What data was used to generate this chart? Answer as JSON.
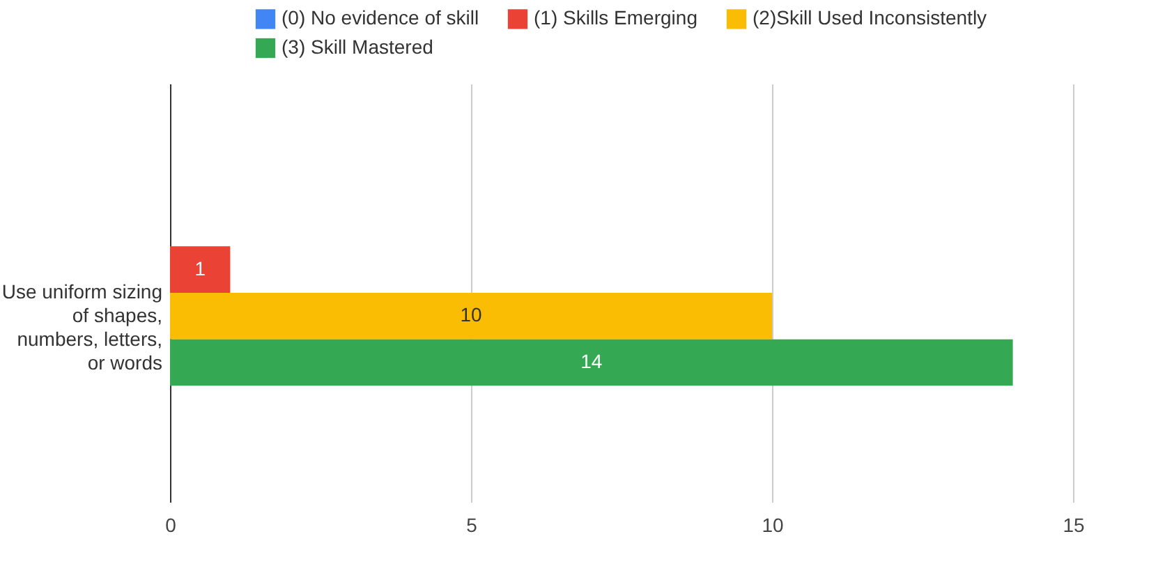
{
  "chart_data": {
    "type": "bar",
    "orientation": "horizontal",
    "categories": [
      "Use uniform sizing of shapes, numbers, letters, or words"
    ],
    "series": [
      {
        "name": "(0) No evidence of skill",
        "color": "#4285f4",
        "values": [
          null
        ]
      },
      {
        "name": "(1) Skills Emerging",
        "color": "#ea4335",
        "values": [
          1
        ]
      },
      {
        "name": "(2)Skill Used Inconsistently",
        "color": "#fbbc04",
        "values": [
          10
        ]
      },
      {
        "name": "(3) Skill Mastered",
        "color": "#34a853",
        "values": [
          14
        ]
      }
    ],
    "xlim": [
      0,
      15
    ],
    "xticks": [
      0,
      5,
      10,
      15
    ],
    "grid": "x",
    "legend": "top",
    "data_labels": true
  }
}
